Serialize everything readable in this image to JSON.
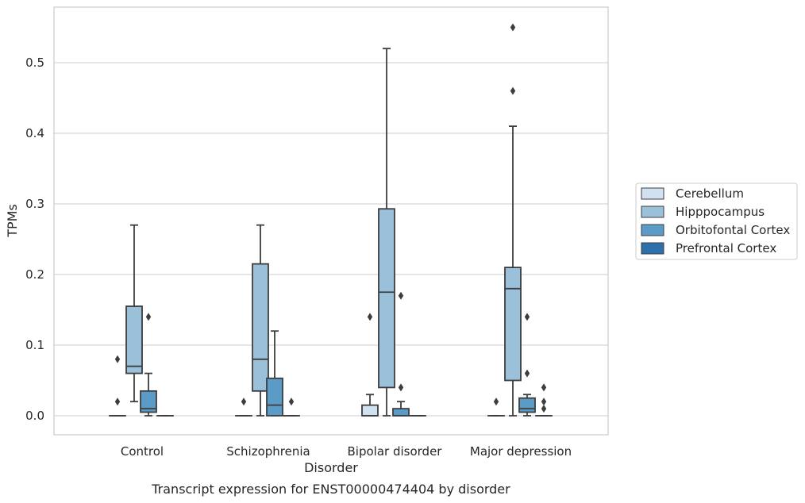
{
  "chart_data": {
    "type": "box",
    "title": "Transcript expression for ENST00000474404 by disorder",
    "xlabel": "Disorder",
    "ylabel": "TPMs",
    "ylim": [
      -0.027,
      0.58
    ],
    "yticks": [
      0.0,
      0.1,
      0.2,
      0.3,
      0.4,
      0.5
    ],
    "ytick_labels": [
      "0.0",
      "0.1",
      "0.2",
      "0.3",
      "0.4",
      "0.5"
    ],
    "grid": "horizontal",
    "legend_position": "right",
    "categories": [
      "Control",
      "Schizophrenia",
      "Bipolar disorder",
      "Major depression"
    ],
    "series": [
      {
        "name": "Cerebellum",
        "color": "#d0e1f2",
        "boxes": [
          {
            "q1": 0,
            "median": 0,
            "q3": 0,
            "whisker_low": 0,
            "whisker_high": 0,
            "outliers": [
              0.02,
              0.08
            ]
          },
          {
            "q1": 0,
            "median": 0,
            "q3": 0,
            "whisker_low": 0,
            "whisker_high": 0,
            "outliers": [
              0.02
            ]
          },
          {
            "q1": 0,
            "median": 0,
            "q3": 0.015,
            "whisker_low": 0,
            "whisker_high": 0.03,
            "outliers": [
              0.14
            ]
          },
          {
            "q1": 0,
            "median": 0,
            "q3": 0,
            "whisker_low": 0,
            "whisker_high": 0,
            "outliers": [
              0.02
            ]
          }
        ]
      },
      {
        "name": "Hipppocampus",
        "color": "#9ac0da",
        "boxes": [
          {
            "q1": 0.06,
            "median": 0.07,
            "q3": 0.155,
            "whisker_low": 0.02,
            "whisker_high": 0.27,
            "outliers": []
          },
          {
            "q1": 0.035,
            "median": 0.08,
            "q3": 0.215,
            "whisker_low": 0,
            "whisker_high": 0.27,
            "outliers": []
          },
          {
            "q1": 0.04,
            "median": 0.175,
            "q3": 0.293,
            "whisker_low": 0,
            "whisker_high": 0.52,
            "outliers": []
          },
          {
            "q1": 0.05,
            "median": 0.18,
            "q3": 0.21,
            "whisker_low": 0,
            "whisker_high": 0.41,
            "outliers": [
              0.46,
              0.55
            ]
          }
        ]
      },
      {
        "name": "Orbitofontal Cortex",
        "color": "#5a9bc7",
        "boxes": [
          {
            "q1": 0.005,
            "median": 0.01,
            "q3": 0.035,
            "whisker_low": 0,
            "whisker_high": 0.06,
            "outliers": [
              0.14
            ]
          },
          {
            "q1": 0,
            "median": 0.015,
            "q3": 0.053,
            "whisker_low": 0,
            "whisker_high": 0.12,
            "outliers": []
          },
          {
            "q1": 0,
            "median": 0,
            "q3": 0.01,
            "whisker_low": 0,
            "whisker_high": 0.02,
            "outliers": [
              0.04,
              0.17
            ]
          },
          {
            "q1": 0.005,
            "median": 0.01,
            "q3": 0.025,
            "whisker_low": 0,
            "whisker_high": 0.03,
            "outliers": [
              0.06,
              0.14
            ]
          }
        ]
      },
      {
        "name": "Prefrontal Cortex",
        "color": "#2e70ab",
        "boxes": [
          {
            "q1": 0,
            "median": 0,
            "q3": 0,
            "whisker_low": 0,
            "whisker_high": 0,
            "outliers": []
          },
          {
            "q1": 0,
            "median": 0,
            "q3": 0,
            "whisker_low": 0,
            "whisker_high": 0,
            "outliers": [
              0.02
            ]
          },
          {
            "q1": 0,
            "median": 0,
            "q3": 0,
            "whisker_low": 0,
            "whisker_high": 0,
            "outliers": []
          },
          {
            "q1": 0,
            "median": 0,
            "q3": 0,
            "whisker_low": 0,
            "whisker_high": 0,
            "outliers": [
              0.01,
              0.02,
              0.04
            ]
          }
        ]
      }
    ]
  }
}
